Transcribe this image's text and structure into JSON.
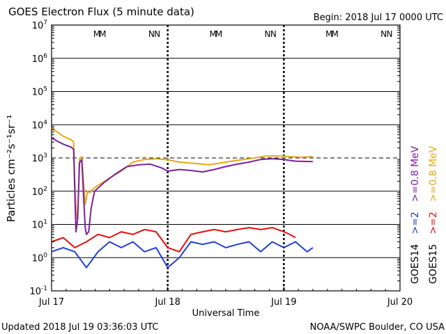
{
  "chart_data": {
    "type": "line",
    "title": "GOES Electron Flux (5 minute data)",
    "begin_label": "Begin: 2018 Jul 17 0000 UTC",
    "xlabel": "Universal Time",
    "ylabel": "Particles cm⁻²s⁻¹sr⁻¹",
    "yscale": "log",
    "ylim": [
      0.1,
      10000000
    ],
    "y_tick_exponents": [
      "7",
      "6",
      "5",
      "4",
      "3",
      "2",
      "1",
      "0",
      "-1"
    ],
    "xlim_days": [
      0,
      3
    ],
    "x_tick_labels": [
      "Jul 17",
      "Jul 18",
      "Jul 19",
      "Jul 20"
    ],
    "threshold": 1000,
    "footer_left": "Updated 2018 Jul 19 03:36:03 UTC",
    "footer_right": "NOAA/SWPC Boulder, CO USA",
    "markers": [
      {
        "label": "M",
        "day": 0.39,
        "color": "#1f3fd1"
      },
      {
        "label": "M",
        "day": 0.44,
        "color": "#d11f1f"
      },
      {
        "label": "N",
        "day": 0.86,
        "color": "#1f3fd1"
      },
      {
        "label": "N",
        "day": 0.91,
        "color": "#d11f1f"
      },
      {
        "label": "M",
        "day": 1.39,
        "color": "#1f3fd1"
      },
      {
        "label": "M",
        "day": 1.44,
        "color": "#d11f1f"
      },
      {
        "label": "N",
        "day": 1.86,
        "color": "#1f3fd1"
      },
      {
        "label": "N",
        "day": 1.91,
        "color": "#d11f1f"
      },
      {
        "label": "M",
        "day": 2.39,
        "color": "#1f3fd1"
      },
      {
        "label": "M",
        "day": 2.44,
        "color": "#d11f1f"
      },
      {
        "label": "N",
        "day": 2.86,
        "color": "#1f3fd1"
      },
      {
        "label": "N",
        "day": 2.91,
        "color": "#d11f1f"
      }
    ],
    "legend": [
      {
        "text": "GOES14",
        "color": "#000000"
      },
      {
        "text": ">=2",
        "color": "#1f3fd1"
      },
      {
        "text": ">=0.8 MeV",
        "color": "#7b1fa2"
      },
      {
        "text": "GOES15",
        "color": "#000000"
      },
      {
        "text": ">=2",
        "color": "#e01010"
      },
      {
        "text": ">=0.8 MeV",
        "color": "#e6a817"
      }
    ],
    "series": [
      {
        "name": "GOES15 >=0.8 MeV",
        "color": "#e6a817",
        "points": [
          [
            0.0,
            8000
          ],
          [
            0.05,
            6000
          ],
          [
            0.1,
            4500
          ],
          [
            0.17,
            3500
          ],
          [
            0.19,
            3000
          ],
          [
            0.2,
            200
          ],
          [
            0.215,
            15
          ],
          [
            0.225,
            20
          ],
          [
            0.24,
            900
          ],
          [
            0.26,
            1100
          ],
          [
            0.275,
            200
          ],
          [
            0.29,
            40
          ],
          [
            0.31,
            100
          ],
          [
            0.33,
            90
          ],
          [
            0.35,
            110
          ],
          [
            0.4,
            150
          ],
          [
            0.5,
            250
          ],
          [
            0.6,
            400
          ],
          [
            0.7,
            750
          ],
          [
            0.8,
            900
          ],
          [
            0.9,
            950
          ],
          [
            1.0,
            880
          ],
          [
            1.1,
            750
          ],
          [
            1.2,
            700
          ],
          [
            1.3,
            650
          ],
          [
            1.35,
            620
          ],
          [
            1.45,
            700
          ],
          [
            1.55,
            800
          ],
          [
            1.65,
            900
          ],
          [
            1.75,
            1000
          ],
          [
            1.85,
            1150
          ],
          [
            1.95,
            1150
          ],
          [
            2.05,
            1100
          ],
          [
            2.15,
            1050
          ],
          [
            2.25,
            1100
          ]
        ]
      },
      {
        "name": "GOES14 >=0.8 MeV",
        "color": "#7b1fa2",
        "points": [
          [
            0.0,
            4000
          ],
          [
            0.05,
            3200
          ],
          [
            0.1,
            2600
          ],
          [
            0.17,
            2100
          ],
          [
            0.19,
            1800
          ],
          [
            0.2,
            100
          ],
          [
            0.21,
            6
          ],
          [
            0.225,
            15
          ],
          [
            0.24,
            700
          ],
          [
            0.26,
            900
          ],
          [
            0.275,
            80
          ],
          [
            0.29,
            8
          ],
          [
            0.3,
            5
          ],
          [
            0.32,
            6
          ],
          [
            0.34,
            30
          ],
          [
            0.37,
            100
          ],
          [
            0.45,
            180
          ],
          [
            0.55,
            330
          ],
          [
            0.65,
            550
          ],
          [
            0.75,
            620
          ],
          [
            0.85,
            650
          ],
          [
            0.95,
            500
          ],
          [
            1.0,
            400
          ],
          [
            1.1,
            450
          ],
          [
            1.2,
            420
          ],
          [
            1.3,
            380
          ],
          [
            1.4,
            450
          ],
          [
            1.5,
            550
          ],
          [
            1.6,
            650
          ],
          [
            1.7,
            750
          ],
          [
            1.8,
            900
          ],
          [
            1.9,
            950
          ],
          [
            2.0,
            900
          ],
          [
            2.1,
            800
          ],
          [
            2.25,
            780
          ]
        ]
      },
      {
        "name": "GOES14 >=2 MeV",
        "color": "#1f3fd1",
        "points": [
          [
            0.0,
            1.5
          ],
          [
            0.1,
            2
          ],
          [
            0.2,
            1.5
          ],
          [
            0.3,
            0.5
          ],
          [
            0.4,
            1.5
          ],
          [
            0.5,
            3
          ],
          [
            0.6,
            2
          ],
          [
            0.7,
            3
          ],
          [
            0.8,
            1.5
          ],
          [
            0.9,
            2
          ],
          [
            1.0,
            0.5
          ],
          [
            1.1,
            1
          ],
          [
            1.2,
            3
          ],
          [
            1.3,
            2.5
          ],
          [
            1.4,
            3
          ],
          [
            1.5,
            2
          ],
          [
            1.6,
            2.5
          ],
          [
            1.7,
            3
          ],
          [
            1.8,
            1.5
          ],
          [
            1.9,
            3
          ],
          [
            2.0,
            2
          ],
          [
            2.1,
            3
          ],
          [
            2.2,
            1.5
          ],
          [
            2.25,
            2
          ]
        ]
      },
      {
        "name": "GOES15 >=2 MeV",
        "color": "#e01010",
        "points": [
          [
            0.0,
            3
          ],
          [
            0.1,
            4
          ],
          [
            0.2,
            2
          ],
          [
            0.3,
            3
          ],
          [
            0.4,
            5
          ],
          [
            0.5,
            4
          ],
          [
            0.6,
            6
          ],
          [
            0.7,
            5
          ],
          [
            0.8,
            7
          ],
          [
            0.9,
            6
          ],
          [
            1.0,
            2
          ],
          [
            1.1,
            1.5
          ],
          [
            1.2,
            5
          ],
          [
            1.3,
            6
          ],
          [
            1.4,
            7
          ],
          [
            1.5,
            6
          ],
          [
            1.6,
            7
          ],
          [
            1.7,
            8
          ],
          [
            1.8,
            7
          ],
          [
            1.9,
            8
          ],
          [
            2.0,
            6
          ],
          [
            2.05,
            5
          ],
          [
            2.1,
            4
          ]
        ]
      }
    ]
  }
}
